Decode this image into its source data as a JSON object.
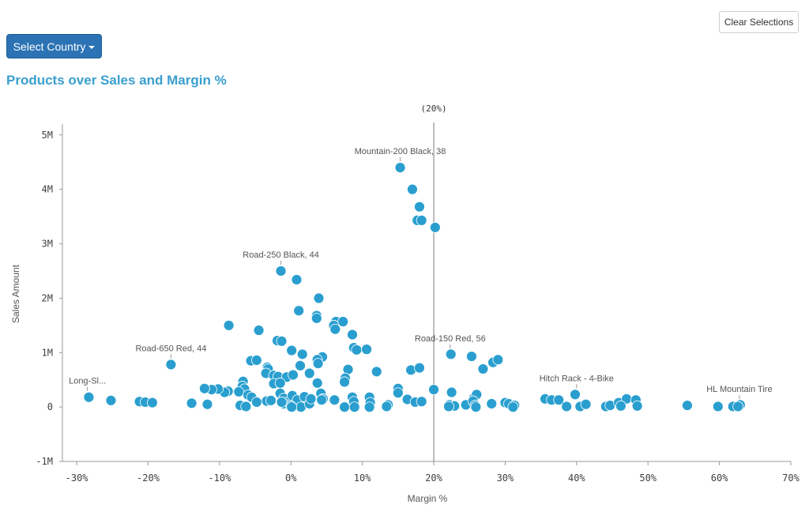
{
  "toolbar": {
    "clear_label": "Clear Selections"
  },
  "filter": {
    "select_label": "Select Country"
  },
  "chart_data": {
    "type": "scatter",
    "title": "Products over Sales and Margin %",
    "xlabel": "Margin %",
    "ylabel": "Sales Amount",
    "xlim": [
      -32,
      70
    ],
    "ylim": [
      -1000000,
      5200000
    ],
    "x_ticks": [
      -30,
      -20,
      -10,
      0,
      10,
      20,
      30,
      40,
      50,
      60,
      70
    ],
    "x_tick_labels": [
      "-30%",
      "-20%",
      "-10%",
      "0%",
      "10%",
      "20%",
      "30%",
      "40%",
      "50%",
      "60%",
      "70%"
    ],
    "y_ticks": [
      -1000000,
      0,
      1000000,
      2000000,
      3000000,
      4000000,
      5000000
    ],
    "y_tick_labels": [
      "-1M",
      "0",
      "1M",
      "2M",
      "3M",
      "4M",
      "5M"
    ],
    "reference_line": {
      "x": 20,
      "label": "(20%)"
    },
    "point_color": "#2a9fcf",
    "annotations": [
      {
        "text": "Mountain-200 Black, 38",
        "x": 15.3,
        "y": 4400000
      },
      {
        "text": "Road-250 Black, 44",
        "x": -1.4,
        "y": 2500000
      },
      {
        "text": "Road-650 Red, 44",
        "x": -16.8,
        "y": 780000
      },
      {
        "text": "Road-150 Red, 56",
        "x": 22.3,
        "y": 960000
      },
      {
        "text": "Long-Sl...",
        "x": -28.5,
        "y": 180000
      },
      {
        "text": "Hitch Rack - 4-Bike",
        "x": 40.0,
        "y": 230000
      },
      {
        "text": "HL Mountain Tire",
        "x": 62.8,
        "y": 30000
      }
    ],
    "points": [
      [
        15.3,
        4400000
      ],
      [
        17.0,
        4000000
      ],
      [
        18.0,
        3680000
      ],
      [
        17.7,
        3430000
      ],
      [
        18.3,
        3430000
      ],
      [
        20.2,
        3300000
      ],
      [
        -1.4,
        2500000
      ],
      [
        0.8,
        2340000
      ],
      [
        3.9,
        2000000
      ],
      [
        1.1,
        1770000
      ],
      [
        3.6,
        1680000
      ],
      [
        3.6,
        1630000
      ],
      [
        6.3,
        1570000
      ],
      [
        7.3,
        1570000
      ],
      [
        6.0,
        1500000
      ],
      [
        6.2,
        1430000
      ],
      [
        -8.7,
        1500000
      ],
      [
        -4.5,
        1410000
      ],
      [
        8.6,
        1330000
      ],
      [
        -1.9,
        1220000
      ],
      [
        -1.3,
        1210000
      ],
      [
        8.8,
        1090000
      ],
      [
        9.2,
        1050000
      ],
      [
        10.6,
        1060000
      ],
      [
        0.1,
        1040000
      ],
      [
        1.6,
        970000
      ],
      [
        4.4,
        920000
      ],
      [
        -5.6,
        850000
      ],
      [
        -4.8,
        860000
      ],
      [
        3.7,
        870000
      ],
      [
        3.8,
        800000
      ],
      [
        1.3,
        760000
      ],
      [
        8.0,
        690000
      ],
      [
        -3.3,
        730000
      ],
      [
        -3.2,
        700000
      ],
      [
        -3.5,
        620000
      ],
      [
        -2.4,
        580000
      ],
      [
        -1.8,
        560000
      ],
      [
        -0.6,
        550000
      ],
      [
        0.3,
        590000
      ],
      [
        2.6,
        620000
      ],
      [
        12.0,
        650000
      ],
      [
        16.8,
        680000
      ],
      [
        18.0,
        720000
      ],
      [
        22.4,
        970000
      ],
      [
        25.3,
        930000
      ],
      [
        26.9,
        700000
      ],
      [
        28.3,
        820000
      ],
      [
        29.0,
        870000
      ],
      [
        -16.8,
        780000
      ],
      [
        7.6,
        530000
      ],
      [
        7.5,
        460000
      ],
      [
        3.7,
        440000
      ],
      [
        -2.4,
        430000
      ],
      [
        -1.5,
        440000
      ],
      [
        -6.7,
        470000
      ],
      [
        -6.8,
        380000
      ],
      [
        -6.5,
        330000
      ],
      [
        -7.3,
        280000
      ],
      [
        -8.8,
        290000
      ],
      [
        -9.3,
        270000
      ],
      [
        -10.2,
        330000
      ],
      [
        -11.1,
        320000
      ],
      [
        -12.1,
        340000
      ],
      [
        -6.0,
        220000
      ],
      [
        -5.5,
        180000
      ],
      [
        -3.4,
        110000
      ],
      [
        -1.5,
        250000
      ],
      [
        -1.0,
        160000
      ],
      [
        -0.3,
        100000
      ],
      [
        0.2,
        210000
      ],
      [
        0.9,
        130000
      ],
      [
        1.9,
        190000
      ],
      [
        4.2,
        250000
      ],
      [
        4.5,
        150000
      ],
      [
        6.1,
        130000
      ],
      [
        8.6,
        180000
      ],
      [
        8.8,
        100000
      ],
      [
        11.0,
        180000
      ],
      [
        11.1,
        80000
      ],
      [
        15.0,
        340000
      ],
      [
        15.0,
        260000
      ],
      [
        16.3,
        140000
      ],
      [
        17.4,
        90000
      ],
      [
        18.3,
        100000
      ],
      [
        20.0,
        320000
      ],
      [
        22.5,
        270000
      ],
      [
        22.2,
        40000
      ],
      [
        22.9,
        20000
      ],
      [
        24.5,
        40000
      ],
      [
        25.6,
        160000
      ],
      [
        26.0,
        230000
      ],
      [
        25.5,
        110000
      ],
      [
        25.8,
        30000
      ],
      [
        28.1,
        60000
      ],
      [
        30.0,
        80000
      ],
      [
        30.5,
        60000
      ],
      [
        31.3,
        30000
      ],
      [
        35.6,
        150000
      ],
      [
        36.5,
        130000
      ],
      [
        37.5,
        130000
      ],
      [
        39.8,
        230000
      ],
      [
        38.6,
        10000
      ],
      [
        40.5,
        10000
      ],
      [
        41.3,
        50000
      ],
      [
        44.1,
        10000
      ],
      [
        44.7,
        30000
      ],
      [
        45.9,
        80000
      ],
      [
        47.0,
        150000
      ],
      [
        48.3,
        130000
      ],
      [
        46.2,
        20000
      ],
      [
        48.5,
        20000
      ],
      [
        55.5,
        30000
      ],
      [
        59.8,
        10000
      ],
      [
        61.9,
        10000
      ],
      [
        62.9,
        40000
      ],
      [
        62.6,
        10000
      ],
      [
        -6.2,
        10000
      ],
      [
        -4.8,
        90000
      ],
      [
        -2.8,
        120000
      ],
      [
        -1.0,
        60000
      ],
      [
        0.0,
        20000
      ],
      [
        1.4,
        0
      ],
      [
        2.6,
        60000
      ],
      [
        4.3,
        130000
      ],
      [
        7.5,
        0
      ],
      [
        8.9,
        0
      ],
      [
        11.0,
        0
      ],
      [
        13.6,
        40000
      ],
      [
        13.4,
        10000
      ],
      [
        22.1,
        10000
      ],
      [
        25.9,
        0
      ],
      [
        31.1,
        0
      ],
      [
        -28.3,
        180000
      ],
      [
        -25.2,
        120000
      ],
      [
        -21.2,
        100000
      ],
      [
        -20.4,
        90000
      ],
      [
        -19.4,
        80000
      ],
      [
        -13.9,
        70000
      ],
      [
        -11.7,
        50000
      ],
      [
        -7.1,
        30000
      ],
      [
        -6.3,
        10000
      ],
      [
        -1.3,
        90000
      ],
      [
        0.1,
        0
      ],
      [
        2.8,
        150000
      ]
    ]
  }
}
